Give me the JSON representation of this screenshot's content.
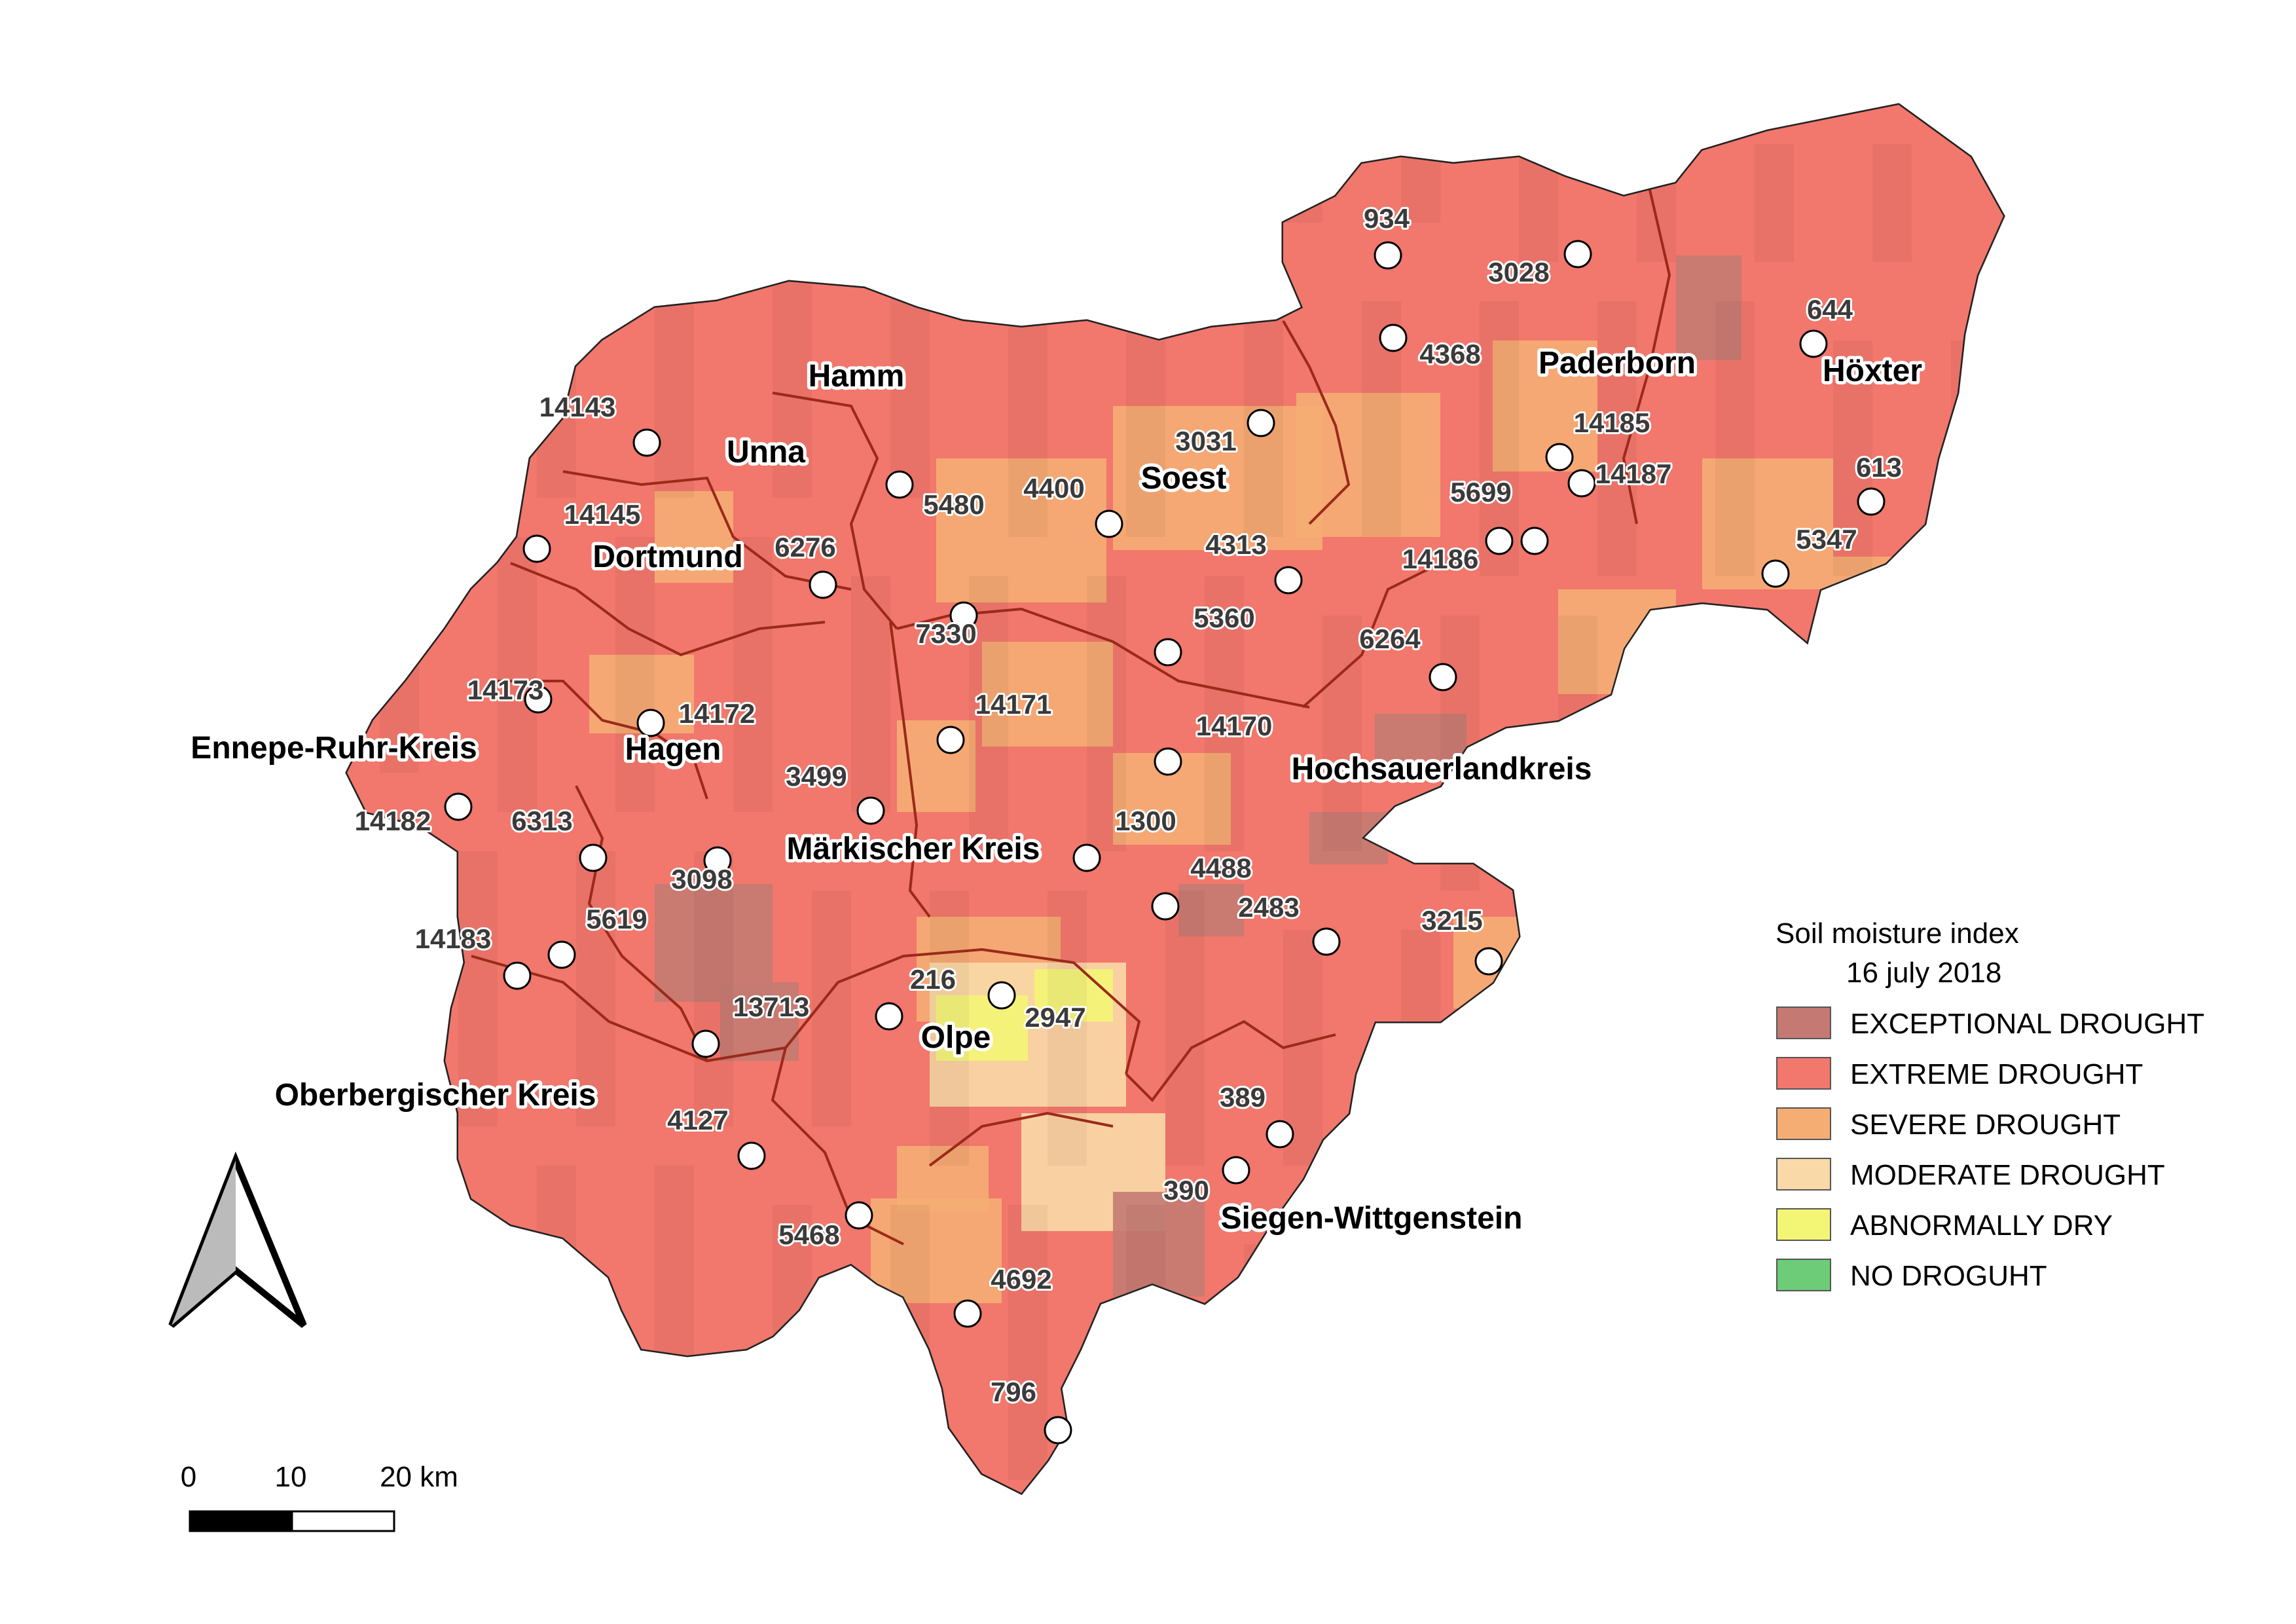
{
  "legend": {
    "title": "Soil moisture index",
    "date": "16 july 2018",
    "classes": [
      {
        "label": "EXCEPTIONAL DROUGHT",
        "color": "#c47a72"
      },
      {
        "label": "EXTREME DROUGHT",
        "color": "#f2776c"
      },
      {
        "label": "SEVERE DROUGHT",
        "color": "#f5ad74"
      },
      {
        "label": "MODERATE DROUGHT",
        "color": "#fad9a8"
      },
      {
        "label": "ABNORMALLY DRY",
        "color": "#f3f574"
      },
      {
        "label": "NO DROGUHT",
        "color": "#6dcc78"
      }
    ]
  },
  "scale_bar": {
    "labels": [
      "0",
      "10",
      "20 km"
    ]
  },
  "north_arrow": {
    "icon": "north-arrow-icon"
  },
  "districts": [
    "Hamm",
    "Unna",
    "Dortmund",
    "Soest",
    "Paderborn",
    "Höxter",
    "Ennepe-Ruhr-Kreis",
    "Hagen",
    "Hochsauerlandkreis",
    "Märkischer Kreis",
    "Olpe",
    "Oberbergischer Kreis",
    "Siegen-Wittgenstein"
  ],
  "stations": [
    "934",
    "3028",
    "4368",
    "644",
    "14143",
    "3031",
    "14185",
    "14187",
    "5480",
    "4400",
    "613",
    "14145",
    "6276",
    "5699",
    "4313",
    "14186",
    "5347",
    "7330",
    "5360",
    "6264",
    "14173",
    "14172",
    "14171",
    "14170",
    "14182",
    "3499",
    "6313",
    "3098",
    "1300",
    "4488",
    "2483",
    "3215",
    "14183",
    "5619",
    "216",
    "2947",
    "13713",
    "389",
    "4127",
    "390",
    "5468",
    "4692",
    "796"
  ]
}
